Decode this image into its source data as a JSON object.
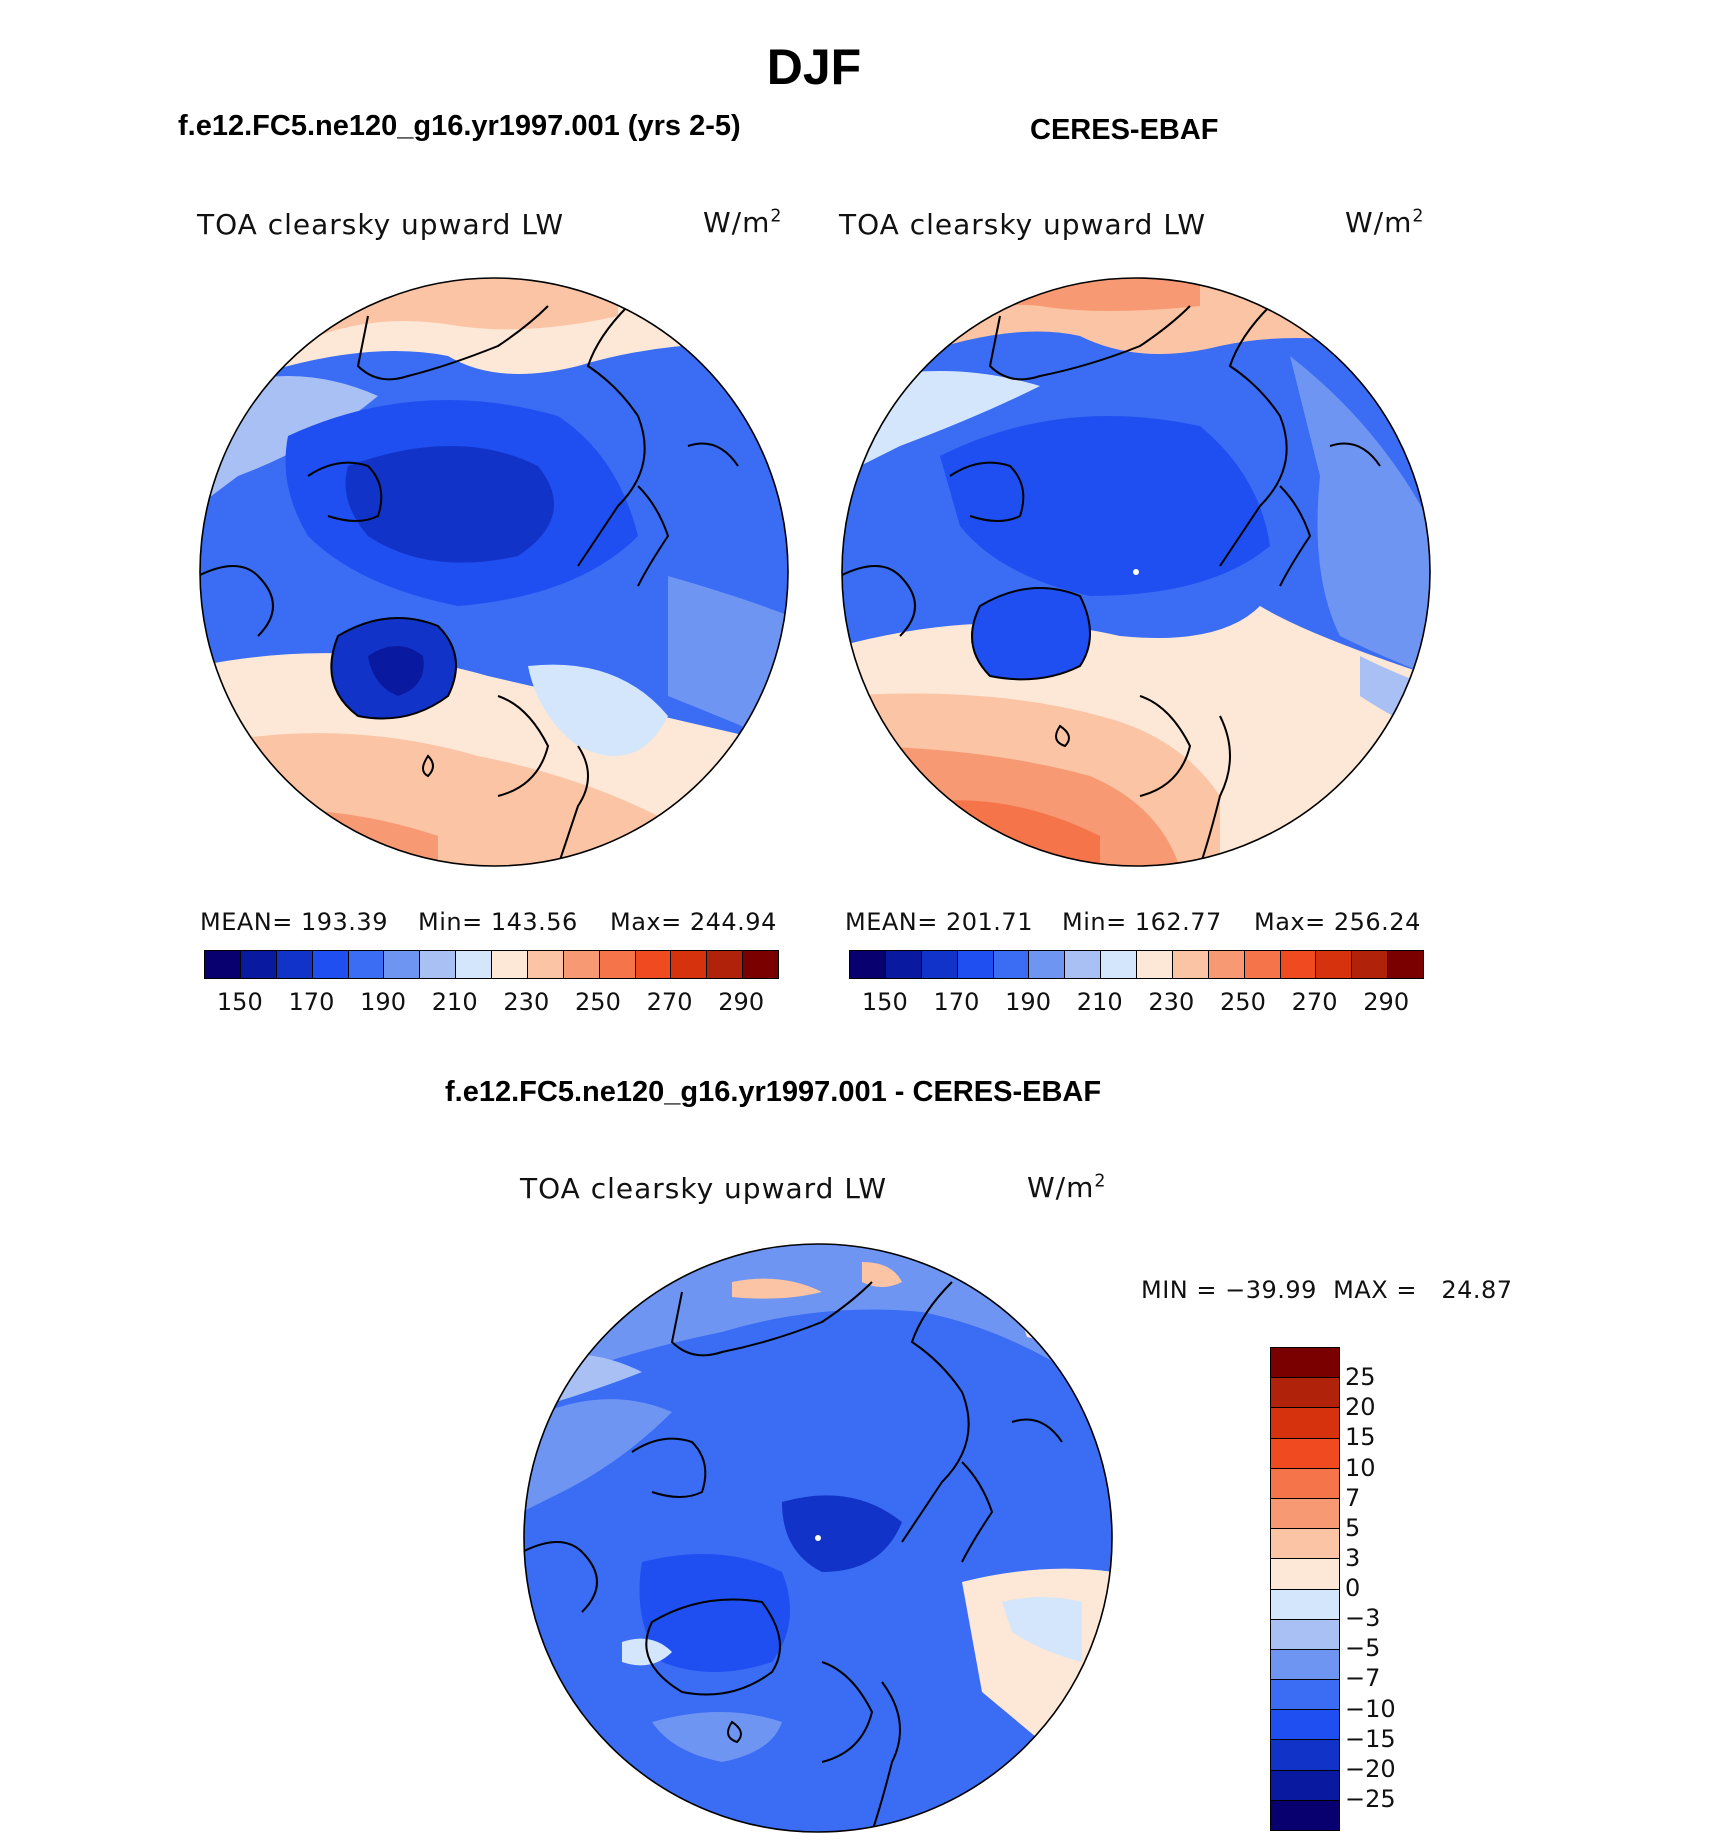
{
  "figure": {
    "title": "DJF",
    "panel1": {
      "header": "f.e12.FC5.ne120_g16.yr1997.001 (yrs 2-5)",
      "label": "TOA clearsky upward LW",
      "units": "W/m",
      "units_exp": "2",
      "mean": "MEAN= 193.39",
      "min": "Min= 143.56",
      "max": "Max= 244.94"
    },
    "panel2": {
      "header": "CERES-EBAF",
      "label": "TOA clearsky upward LW",
      "units": "W/m",
      "units_exp": "2",
      "mean": "MEAN= 201.71",
      "min": "Min= 162.77",
      "max": "Max= 256.24"
    },
    "panel3": {
      "header": "f.e12.FC5.ne120_g16.yr1997.001 - CERES-EBAF",
      "label": "TOA clearsky upward LW",
      "units": "W/m",
      "units_exp": "2",
      "minmax": "MIN = −39.99  MAX =   24.87"
    },
    "abs_colorbar": {
      "ticks": [
        "150",
        "170",
        "190",
        "210",
        "230",
        "250",
        "270",
        "290"
      ],
      "colors": [
        "#08006e",
        "#0a1aa0",
        "#1233c8",
        "#1f4ff0",
        "#3a6cf4",
        "#6f95f3",
        "#a9c0f4",
        "#d4e6fb",
        "#fde7d6",
        "#fbc4a4",
        "#f79a73",
        "#f6744a",
        "#f04a20",
        "#d6320e",
        "#b0220a",
        "#7a0000"
      ]
    },
    "diff_colorbar": {
      "ticks": [
        "25",
        "20",
        "15",
        "10",
        "7",
        "5",
        "3",
        "0",
        "−3",
        "−5",
        "−7",
        "−10",
        "−15",
        "−20",
        "−25"
      ],
      "colors": [
        "#7a0000",
        "#b0220a",
        "#d6320e",
        "#f04a20",
        "#f6744a",
        "#f79a73",
        "#fbc4a4",
        "#fde7d6",
        "#d4e6fb",
        "#a9c0f4",
        "#6f95f3",
        "#3a6cf4",
        "#1f4ff0",
        "#1233c8",
        "#0a1aa0",
        "#08006e"
      ]
    }
  }
}
